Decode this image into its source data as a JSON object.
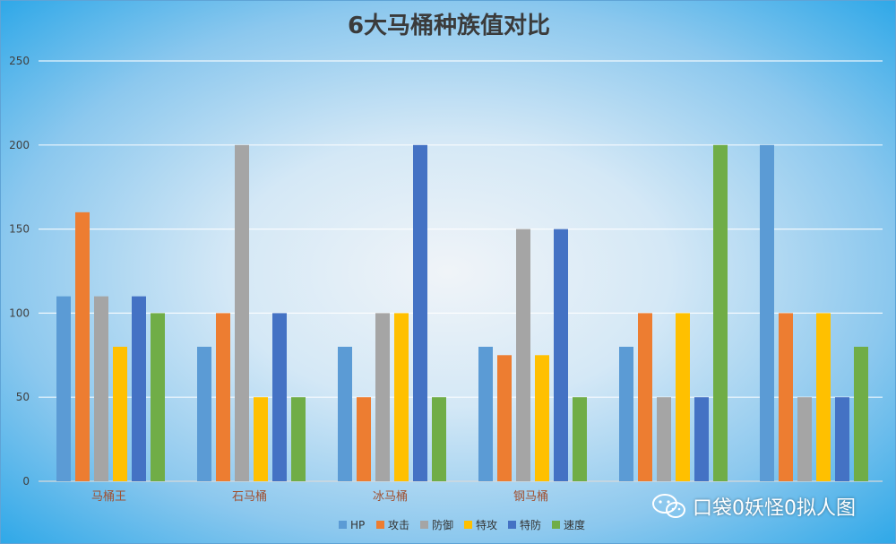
{
  "colors": {
    "HP": "#5b9bd5",
    "攻击": "#ed7d31",
    "防御": "#a5a5a5",
    "特攻": "#ffc000",
    "特防": "#4472c4",
    "速度": "#70ad47"
  },
  "watermark": {
    "text": "口袋0妖怪0拟人图",
    "icon": "wechat-icon"
  },
  "chart_data": {
    "type": "bar",
    "title": "6大马桶种族值对比",
    "xlabel": "",
    "ylabel": "",
    "ylim": [
      0,
      250
    ],
    "yticks": [
      0,
      50,
      100,
      150,
      200,
      250
    ],
    "grid": true,
    "legend_position": "bottom",
    "categories": [
      "马桶王",
      "石马桶",
      "冰马桶",
      "钢马桶",
      "",
      ""
    ],
    "series": [
      {
        "name": "HP",
        "values": [
          110,
          80,
          80,
          80,
          80,
          200
        ]
      },
      {
        "name": "攻击",
        "values": [
          160,
          100,
          50,
          75,
          100,
          100
        ]
      },
      {
        "name": "防御",
        "values": [
          110,
          200,
          100,
          150,
          50,
          50
        ]
      },
      {
        "name": "特攻",
        "values": [
          80,
          50,
          100,
          75,
          100,
          100
        ]
      },
      {
        "name": "特防",
        "values": [
          110,
          100,
          200,
          150,
          50,
          50
        ]
      },
      {
        "name": "速度",
        "values": [
          100,
          50,
          50,
          50,
          200,
          80
        ]
      }
    ]
  }
}
